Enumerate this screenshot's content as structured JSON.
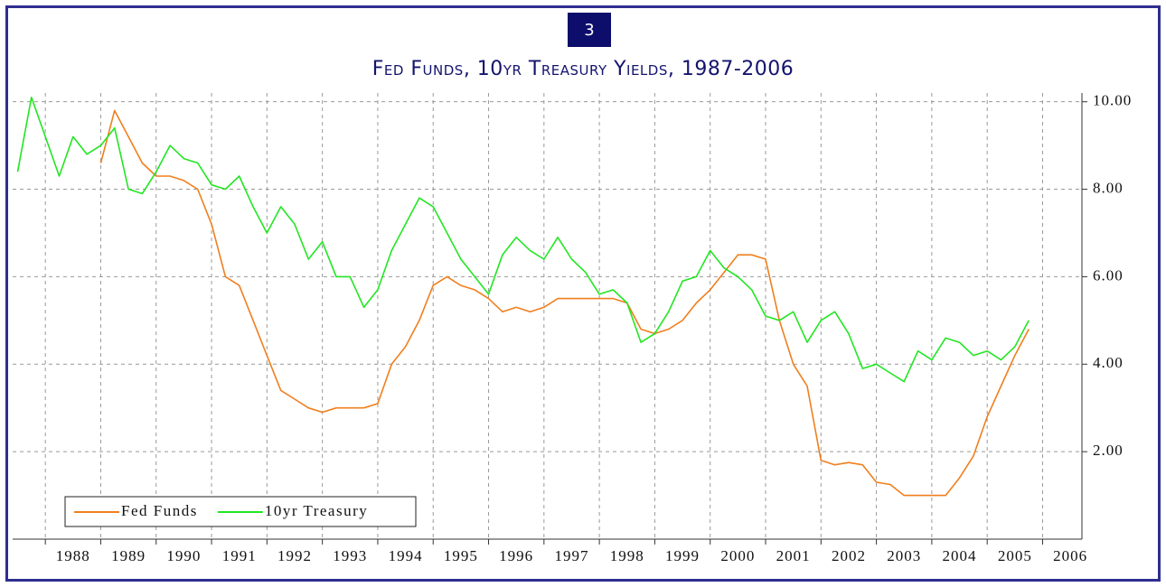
{
  "badge": "3",
  "chart_data": {
    "type": "line",
    "title": "Fed Funds, 10yr Treasury Yields, 1987-2006",
    "x": [
      1987.5,
      1987.75,
      1988,
      1988.25,
      1988.5,
      1988.75,
      1989,
      1989.25,
      1989.5,
      1989.75,
      1990,
      1990.25,
      1990.5,
      1990.75,
      1991,
      1991.25,
      1991.5,
      1991.75,
      1992,
      1992.25,
      1992.5,
      1992.75,
      1993,
      1993.25,
      1993.5,
      1993.75,
      1994,
      1994.25,
      1994.5,
      1994.75,
      1995,
      1995.25,
      1995.5,
      1995.75,
      1996,
      1996.25,
      1996.5,
      1996.75,
      1997,
      1997.25,
      1997.5,
      1997.75,
      1998,
      1998.25,
      1998.5,
      1998.75,
      1999,
      1999.25,
      1999.5,
      1999.75,
      2000,
      2000.25,
      2000.5,
      2000.75,
      2001,
      2001.25,
      2001.5,
      2001.75,
      2002,
      2002.25,
      2002.5,
      2002.75,
      2003,
      2003.25,
      2003.5,
      2003.75,
      2004,
      2004.25,
      2004.5,
      2004.75,
      2005,
      2005.25,
      2005.5,
      2005.75
    ],
    "series": [
      {
        "name": "Fed Funds",
        "color": "#f07f1e",
        "values": [
          null,
          null,
          null,
          null,
          null,
          null,
          8.6,
          9.8,
          9.2,
          8.6,
          8.3,
          8.3,
          8.2,
          8.0,
          7.2,
          6.0,
          5.8,
          5.0,
          4.2,
          3.4,
          3.2,
          3.0,
          2.9,
          3.0,
          3.0,
          3.0,
          3.1,
          4.0,
          4.4,
          5.0,
          5.8,
          6.0,
          5.8,
          5.7,
          5.5,
          5.2,
          5.3,
          5.2,
          5.3,
          5.5,
          5.5,
          5.5,
          5.5,
          5.5,
          5.4,
          4.8,
          4.7,
          4.8,
          5.0,
          5.4,
          5.7,
          6.1,
          6.5,
          6.5,
          6.4,
          5.0,
          4.0,
          3.5,
          1.8,
          1.7,
          1.75,
          1.7,
          1.3,
          1.25,
          1.0,
          1.0,
          1.0,
          1.0,
          1.4,
          1.9,
          2.8,
          3.5,
          4.2,
          4.8
        ]
      },
      {
        "name": "10yr Treasury",
        "color": "#22e622",
        "values": [
          8.4,
          10.1,
          9.2,
          8.3,
          9.2,
          8.8,
          9.0,
          9.4,
          8.0,
          7.9,
          8.4,
          9.0,
          8.7,
          8.6,
          8.1,
          8.0,
          8.3,
          7.6,
          7.0,
          7.6,
          7.2,
          6.4,
          6.8,
          6.0,
          6.0,
          5.3,
          5.7,
          6.6,
          7.2,
          7.8,
          7.6,
          7.0,
          6.4,
          6.0,
          5.6,
          6.5,
          6.9,
          6.6,
          6.4,
          6.9,
          6.4,
          6.1,
          5.6,
          5.7,
          5.4,
          4.5,
          4.7,
          5.2,
          5.9,
          6.0,
          6.6,
          6.2,
          6.0,
          5.7,
          5.1,
          5.0,
          5.2,
          4.5,
          5.0,
          5.2,
          4.7,
          3.9,
          4.0,
          3.8,
          3.6,
          4.3,
          4.1,
          4.6,
          4.5,
          4.2,
          4.3,
          4.1,
          4.4,
          5.0
        ]
      }
    ],
    "xlim": [
      1987.41,
      2006.71
    ],
    "xticks": [
      1988,
      1989,
      1990,
      1991,
      1992,
      1993,
      1994,
      1995,
      1996,
      1997,
      1998,
      1999,
      2000,
      2001,
      2002,
      2003,
      2004,
      2005,
      2006
    ],
    "ylim": [
      0,
      10.2
    ],
    "yticks": [
      {
        "value": 2,
        "label": "2.00"
      },
      {
        "value": 4,
        "label": "4.00"
      },
      {
        "value": 6,
        "label": "6.00"
      },
      {
        "value": 8,
        "label": "8.00"
      },
      {
        "value": 10,
        "label": "10.00"
      }
    ],
    "grid": true,
    "legend": "lower left"
  }
}
